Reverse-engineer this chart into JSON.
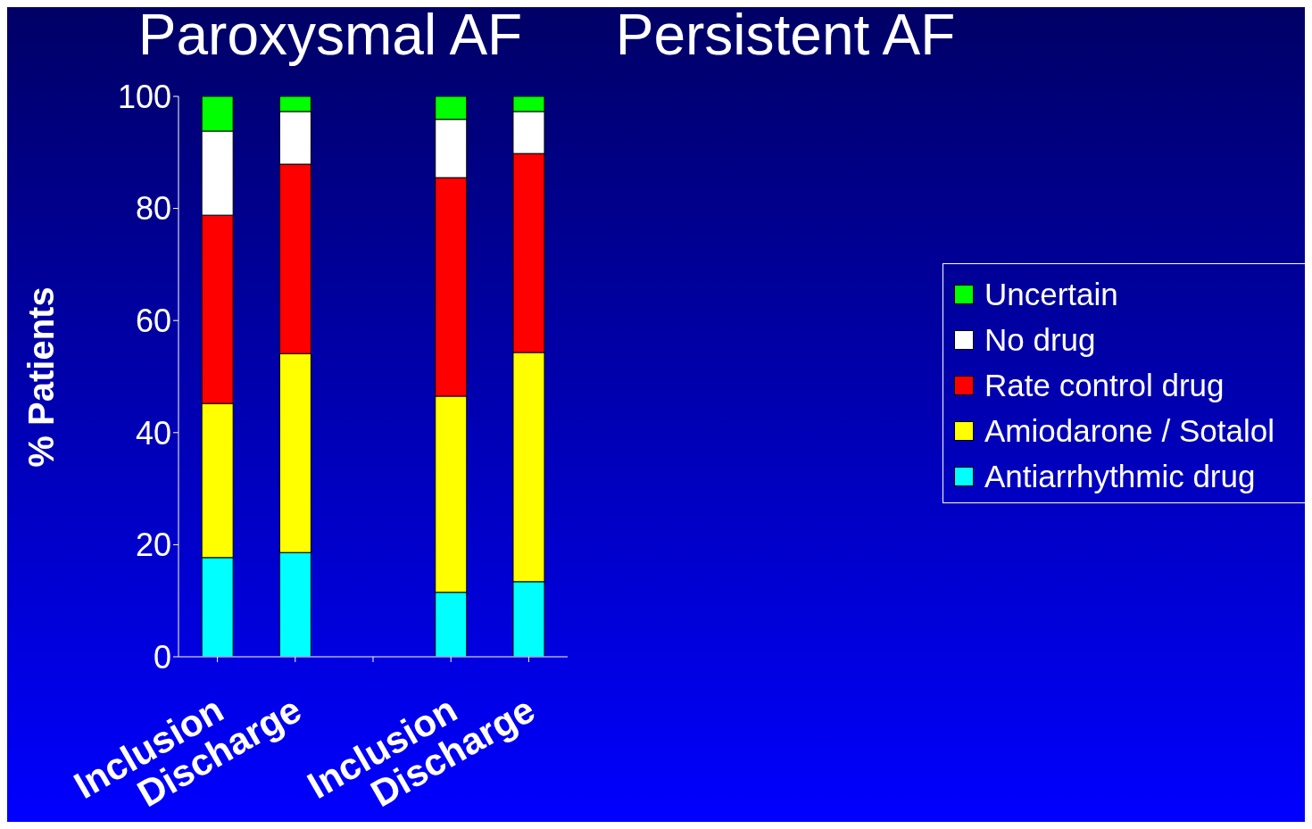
{
  "chart_data": {
    "type": "bar",
    "stacked": true,
    "annotations": [
      "Paroxysmal AF",
      "Persistent AF"
    ],
    "ylabel": "% Patients",
    "categories": [
      "Inclusion",
      "Discharge",
      null,
      "Inclusion",
      "Discharge"
    ],
    "series": [
      {
        "name": "Antiarrhythmic drug",
        "color": "#00ffff",
        "values": [
          17.7,
          18.6,
          null,
          11.5,
          13.4
        ]
      },
      {
        "name": "Amiodarone / Sotalol",
        "color": "#ffff00",
        "values": [
          27.5,
          35.5,
          null,
          35,
          40.9
        ]
      },
      {
        "name": "Rate control drug",
        "color": "#ff0000",
        "values": [
          33.6,
          33.8,
          null,
          39,
          35.5
        ]
      },
      {
        "name": "No drug",
        "color": "#ffffff",
        "values": [
          15,
          9.4,
          null,
          10.4,
          7.5
        ]
      },
      {
        "name": "Uncertain",
        "color": "#00ff00",
        "values": [
          6.2,
          2.7,
          null,
          4.1,
          2.7
        ]
      }
    ],
    "ylim": [
      0,
      100
    ],
    "yticks": [
      0,
      20,
      40,
      60,
      80,
      100
    ],
    "grid": false,
    "legend": "right"
  }
}
